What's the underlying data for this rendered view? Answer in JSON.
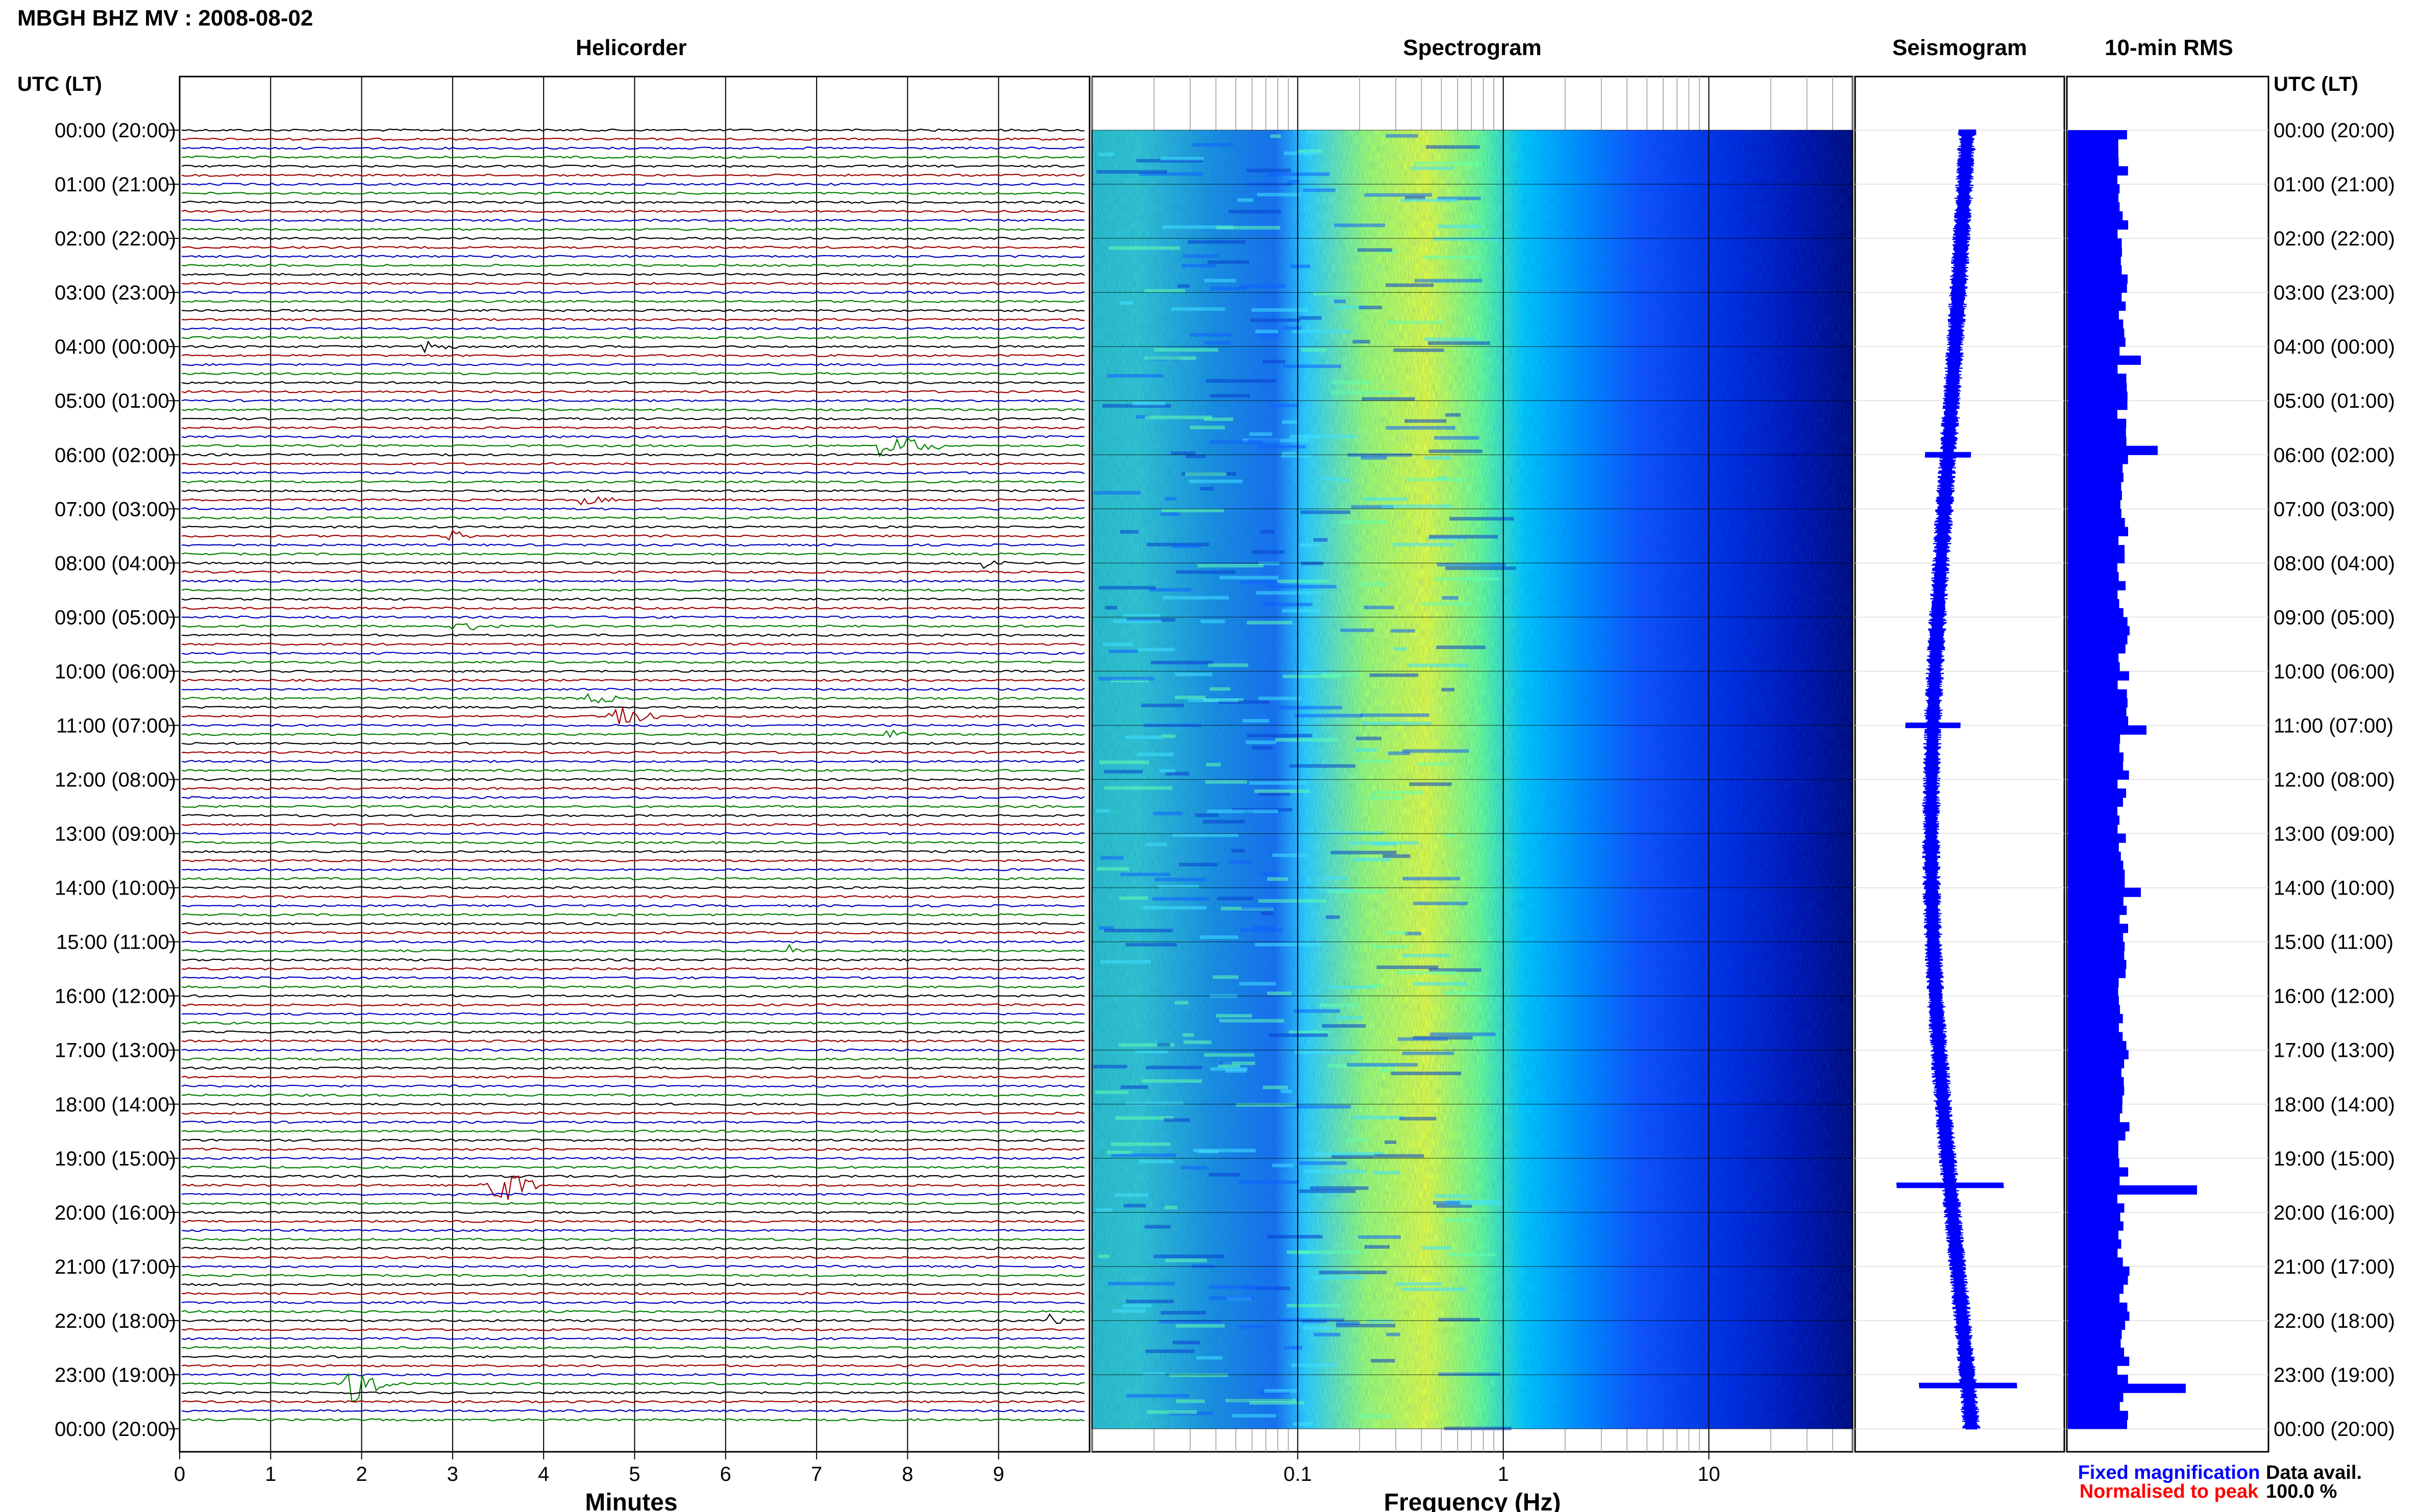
{
  "header": {
    "title": "MBGH BHZ MV : 2008-08-02",
    "utc_label_left": "UTC (LT)",
    "utc_label_right": "UTC (LT)"
  },
  "panels": {
    "helicorder": "Helicorder",
    "spectrogram": "Spectrogram",
    "seismogram": "Seismogram",
    "rms": "10-min RMS"
  },
  "time_labels": [
    "00:00 (20:00)",
    "01:00 (21:00)",
    "02:00 (22:00)",
    "03:00 (23:00)",
    "04:00 (00:00)",
    "05:00 (01:00)",
    "06:00 (02:00)",
    "07:00 (03:00)",
    "08:00 (04:00)",
    "09:00 (05:00)",
    "10:00 (06:00)",
    "11:00 (07:00)",
    "12:00 (08:00)",
    "13:00 (09:00)",
    "14:00 (10:00)",
    "15:00 (11:00)",
    "16:00 (12:00)",
    "17:00 (13:00)",
    "18:00 (14:00)",
    "19:00 (15:00)",
    "20:00 (16:00)",
    "21:00 (17:00)",
    "22:00 (18:00)",
    "23:00 (19:00)",
    "00:00 (20:00)"
  ],
  "legend": {
    "fixed": "Fixed magnification",
    "normalised": "Normalised to peak",
    "data_avail_label": "Data avail.",
    "data_avail_value": "100.0 %"
  },
  "colors": {
    "trace_cycle": [
      "#000000",
      "#a00000",
      "#0000c0",
      "#008000"
    ],
    "fixed_legend": "#0000ff",
    "normalised_legend": "#ff0000",
    "rms_bar": "#0000ff",
    "seismogram": "#0000ff",
    "spectrogram_cmap": [
      "#00007a",
      "#0000ff",
      "#0080ff",
      "#00ffff",
      "#80ff80",
      "#ffff00"
    ]
  },
  "chart_data": [
    {
      "type": "line",
      "name": "helicorder",
      "xlabel": "Minutes",
      "xlim": [
        0,
        10
      ],
      "xticks": [
        0,
        1,
        2,
        3,
        4,
        5,
        6,
        7,
        8,
        9
      ],
      "ylim_hours": [
        0,
        24
      ],
      "rows": 144,
      "rows_per_hour": 6,
      "events": [
        {
          "hour": 4.0,
          "minute": 2.6,
          "amp": 3.0,
          "dur": 0.5
        },
        {
          "hour": 5.83,
          "minute": 7.7,
          "amp": 4.0,
          "dur": 0.9
        },
        {
          "hour": 6.83,
          "minute": 4.4,
          "amp": 2.0,
          "dur": 0.5
        },
        {
          "hour": 7.5,
          "minute": 2.85,
          "amp": 3.0,
          "dur": 0.4
        },
        {
          "hour": 8.0,
          "minute": 8.8,
          "amp": 2.0,
          "dur": 0.5
        },
        {
          "hour": 9.17,
          "minute": 3.0,
          "amp": 2.5,
          "dur": 0.6
        },
        {
          "hour": 10.5,
          "minute": 4.5,
          "amp": 2.5,
          "dur": 0.4
        },
        {
          "hour": 10.83,
          "minute": 4.7,
          "amp": 4.0,
          "dur": 0.7
        },
        {
          "hour": 11.17,
          "minute": 7.8,
          "amp": 2.5,
          "dur": 0.3
        },
        {
          "hour": 15.17,
          "minute": 6.7,
          "amp": 2.5,
          "dur": 0.3
        },
        {
          "hour": 19.5,
          "minute": 3.3,
          "amp": 9.0,
          "dur": 0.7
        },
        {
          "hour": 22.0,
          "minute": 9.6,
          "amp": 2.0,
          "dur": 0.3
        },
        {
          "hour": 23.17,
          "minute": 1.8,
          "amp": 7.0,
          "dur": 0.6
        }
      ]
    },
    {
      "type": "heatmap",
      "name": "spectrogram",
      "xlabel": "Frequency (Hz)",
      "xscale": "log",
      "xlim": [
        0.01,
        50
      ],
      "xticks": [
        0.1,
        1,
        10
      ],
      "xticklabels": [
        "0.1",
        "1",
        "10"
      ],
      "ylim_hours": [
        0,
        24
      ],
      "peak_frequency_hz": 0.4,
      "colorscale": "blue-cyan-yellow"
    },
    {
      "type": "line",
      "name": "seismogram",
      "ylim_hours": [
        0,
        24
      ],
      "spikes": [
        {
          "hour": 6.0,
          "amp": 1.5
        },
        {
          "hour": 11.0,
          "amp": 1.8
        },
        {
          "hour": 19.5,
          "amp": 3.5
        },
        {
          "hour": 23.2,
          "amp": 3.2
        }
      ]
    },
    {
      "type": "bar",
      "name": "10-min RMS",
      "orientation": "horizontal",
      "ylim_hours": [
        0,
        24
      ],
      "baseline_rms": 1.0,
      "peaks": [
        {
          "hour": 4.2,
          "value": 1.3
        },
        {
          "hour": 5.8,
          "value": 1.6
        },
        {
          "hour": 11.0,
          "value": 1.4
        },
        {
          "hour": 14.0,
          "value": 1.3
        },
        {
          "hour": 19.5,
          "value": 2.3
        },
        {
          "hour": 23.2,
          "value": 2.1
        }
      ]
    }
  ]
}
